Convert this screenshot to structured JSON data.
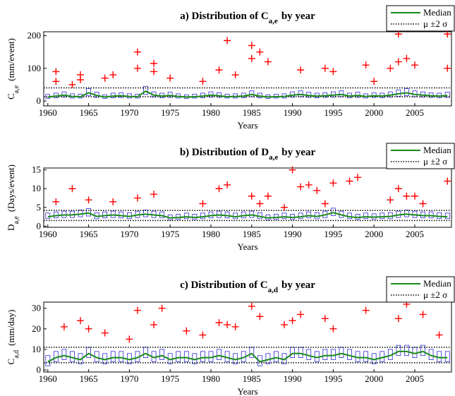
{
  "chart_data": [
    {
      "type": "box",
      "title_prefix": "a) Distribution of C",
      "title_sub": "a,e",
      "title_suffix": "by year",
      "ylabel_main": "C",
      "ylabel_sub": "a,e",
      "ylabel_unit": "(mm/event)",
      "xlabel": "Years",
      "median_name": "Median",
      "band_name": "μ ±2 σ",
      "median_color": "#1a8a1a",
      "box_color": "#2b2bd0",
      "outlier_color": "#ff0000",
      "xlim": [
        1959.5,
        2009.5
      ],
      "xticks": [
        1960,
        1965,
        1970,
        1975,
        1980,
        1985,
        1990,
        1995,
        2000,
        2005
      ],
      "ylim": [
        -15,
        212
      ],
      "yticks": [
        0,
        100,
        200
      ],
      "x": [
        1960,
        1961,
        1962,
        1963,
        1964,
        1965,
        1966,
        1967,
        1968,
        1969,
        1970,
        1971,
        1972,
        1973,
        1974,
        1975,
        1976,
        1977,
        1978,
        1979,
        1980,
        1981,
        1982,
        1983,
        1984,
        1985,
        1986,
        1987,
        1988,
        1989,
        1990,
        1991,
        1992,
        1993,
        1994,
        1995,
        1996,
        1997,
        1998,
        1999,
        2000,
        2001,
        2002,
        2003,
        2004,
        2005,
        2006,
        2007,
        2008,
        2009
      ],
      "median": [
        12,
        15,
        18,
        14,
        13,
        25,
        17,
        12,
        15,
        16,
        14,
        13,
        30,
        18,
        15,
        17,
        14,
        12,
        13,
        15,
        18,
        16,
        13,
        14,
        15,
        20,
        15,
        12,
        13,
        14,
        18,
        20,
        17,
        15,
        16,
        18,
        20,
        15,
        17,
        14,
        16,
        15,
        18,
        22,
        25,
        20,
        18,
        16,
        15,
        17
      ],
      "q1": [
        8,
        10,
        12,
        9,
        9,
        16,
        11,
        8,
        10,
        11,
        9,
        9,
        20,
        12,
        10,
        11,
        9,
        8,
        9,
        10,
        12,
        11,
        9,
        9,
        10,
        13,
        10,
        8,
        9,
        9,
        12,
        13,
        11,
        10,
        11,
        12,
        13,
        10,
        11,
        9,
        11,
        10,
        12,
        14,
        16,
        13,
        12,
        11,
        10,
        11
      ],
      "q3": [
        20,
        24,
        28,
        22,
        21,
        38,
        27,
        19,
        24,
        25,
        22,
        21,
        45,
        28,
        24,
        27,
        22,
        19,
        21,
        24,
        28,
        25,
        21,
        22,
        24,
        31,
        24,
        19,
        21,
        22,
        28,
        31,
        27,
        24,
        25,
        28,
        31,
        24,
        27,
        22,
        25,
        24,
        28,
        34,
        38,
        31,
        28,
        25,
        24,
        27
      ],
      "mu_2sigma": [
        40,
        13
      ],
      "outliers": {
        "x": [
          1961,
          1961,
          1963,
          1964,
          1964,
          1967,
          1968,
          1971,
          1971,
          1973,
          1973,
          1975,
          1979,
          1981,
          1982,
          1983,
          1985,
          1985,
          1986,
          1987,
          1991,
          1994,
          1995,
          1999,
          2000,
          2002,
          2003,
          2003,
          2004,
          2005,
          2009,
          2009
        ],
        "y": [
          60,
          90,
          50,
          65,
          80,
          70,
          80,
          150,
          100,
          90,
          115,
          70,
          60,
          95,
          185,
          80,
          170,
          130,
          150,
          120,
          95,
          100,
          90,
          110,
          60,
          100,
          205,
          120,
          130,
          110,
          205,
          100
        ]
      }
    },
    {
      "type": "box",
      "title_prefix": "b) Distribution of D",
      "title_sub": "a,e",
      "title_suffix": "by year",
      "ylabel_main": "D",
      "ylabel_sub": "a,e",
      "ylabel_unit": "(Days/event)",
      "xlabel": "Years",
      "median_name": "Median",
      "band_name": "μ ±2 σ",
      "median_color": "#1a8a1a",
      "box_color": "#2b2bd0",
      "outlier_color": "#ff0000",
      "xlim": [
        1959.5,
        2009.5
      ],
      "xticks": [
        1960,
        1965,
        1970,
        1975,
        1980,
        1985,
        1990,
        1995,
        2000,
        2005
      ],
      "ylim": [
        -0.3,
        15.5
      ],
      "yticks": [
        0,
        5,
        10,
        15
      ],
      "x": [
        1960,
        1961,
        1962,
        1963,
        1964,
        1965,
        1966,
        1967,
        1968,
        1969,
        1970,
        1971,
        1972,
        1973,
        1974,
        1975,
        1976,
        1977,
        1978,
        1979,
        1980,
        1981,
        1982,
        1983,
        1984,
        1985,
        1986,
        1987,
        1988,
        1989,
        1990,
        1991,
        1992,
        1993,
        1994,
        1995,
        1996,
        1997,
        1998,
        1999,
        2000,
        2001,
        2002,
        2003,
        2004,
        2005,
        2006,
        2007,
        2008,
        2009
      ],
      "median": [
        2.5,
        2.8,
        3.0,
        3.0,
        3.2,
        3.5,
        2.6,
        2.8,
        3.0,
        2.8,
        2.6,
        3.0,
        3.2,
        3.0,
        2.8,
        2.2,
        2.3,
        2.5,
        2.3,
        2.5,
        2.8,
        3.0,
        2.8,
        2.5,
        2.8,
        3.0,
        2.6,
        2.2,
        2.3,
        2.5,
        2.3,
        2.5,
        2.8,
        2.6,
        3.0,
        3.6,
        3.0,
        2.5,
        2.3,
        2.5,
        2.4,
        2.5,
        2.6,
        3.0,
        3.2,
        3.0,
        2.8,
        2.8,
        2.6,
        2.5
      ],
      "q1": [
        2.0,
        2.2,
        2.3,
        2.3,
        2.5,
        2.7,
        2.0,
        2.2,
        2.3,
        2.2,
        2.0,
        2.3,
        2.5,
        2.3,
        2.2,
        1.7,
        1.8,
        2.0,
        1.8,
        2.0,
        2.2,
        2.3,
        2.2,
        2.0,
        2.2,
        2.3,
        2.0,
        1.7,
        1.8,
        2.0,
        1.8,
        2.0,
        2.2,
        2.0,
        2.3,
        2.8,
        2.3,
        2.0,
        1.8,
        2.0,
        1.9,
        2.0,
        2.0,
        2.3,
        2.5,
        2.3,
        2.2,
        2.2,
        2.0,
        2.0
      ],
      "q3": [
        3.5,
        3.8,
        4.0,
        4.0,
        4.3,
        4.7,
        3.6,
        3.8,
        4.0,
        3.8,
        3.6,
        4.0,
        4.3,
        4.0,
        3.8,
        3.0,
        3.2,
        3.5,
        3.2,
        3.5,
        3.8,
        4.0,
        3.8,
        3.5,
        3.8,
        4.0,
        3.6,
        3.0,
        3.2,
        3.5,
        3.2,
        3.5,
        3.8,
        3.6,
        4.0,
        4.8,
        4.0,
        3.5,
        3.2,
        3.5,
        3.3,
        3.5,
        3.6,
        4.0,
        4.3,
        4.0,
        3.8,
        3.8,
        3.6,
        3.5
      ],
      "mu_2sigma": [
        4.2,
        1.5
      ],
      "outliers": {
        "x": [
          1963,
          1961,
          1965,
          1968,
          1971,
          1973,
          1979,
          1981,
          1982,
          1985,
          1986,
          1987,
          1989,
          1990,
          1991,
          1992,
          1993,
          1994,
          1995,
          1997,
          1998,
          2002,
          2003,
          2004,
          2005,
          2006,
          2009
        ],
        "y": [
          10,
          6.5,
          7,
          6.5,
          7.5,
          8.5,
          6,
          10,
          11,
          8,
          6,
          8,
          5,
          15,
          10.5,
          11,
          9.5,
          6,
          11.5,
          12,
          13,
          7,
          10,
          8,
          8,
          6,
          12
        ]
      }
    },
    {
      "type": "box",
      "title_prefix": "c) Distribution of C",
      "title_sub": "a,d",
      "title_suffix": "by year",
      "ylabel_main": "C",
      "ylabel_sub": "a,d",
      "ylabel_unit": "(mm/day)",
      "xlabel": "Years",
      "median_name": "Median",
      "band_name": "μ ±2 σ",
      "median_color": "#1a8a1a",
      "box_color": "#2b2bd0",
      "outlier_color": "#ff0000",
      "xlim": [
        1959.5,
        2009.5
      ],
      "xticks": [
        1960,
        1965,
        1970,
        1975,
        1980,
        1985,
        1990,
        1995,
        2000,
        2005
      ],
      "ylim": [
        -1,
        33
      ],
      "yticks": [
        0,
        10,
        20,
        30
      ],
      "x": [
        1960,
        1961,
        1962,
        1963,
        1964,
        1965,
        1966,
        1967,
        1968,
        1969,
        1970,
        1971,
        1972,
        1973,
        1974,
        1975,
        1976,
        1977,
        1978,
        1979,
        1980,
        1981,
        1982,
        1983,
        1984,
        1985,
        1986,
        1987,
        1988,
        1989,
        1990,
        1991,
        1992,
        1993,
        1994,
        1995,
        1996,
        1997,
        1998,
        1999,
        2000,
        2001,
        2002,
        2003,
        2004,
        2005,
        2006,
        2007,
        2008,
        2009
      ],
      "median": [
        4,
        6,
        7,
        6,
        5,
        8,
        6,
        5,
        6,
        6,
        5,
        6,
        8,
        6,
        7,
        5,
        6,
        6,
        5,
        6,
        6,
        7,
        6,
        5,
        6,
        8,
        4,
        5,
        6,
        5,
        8,
        8,
        7,
        6,
        7,
        7,
        8,
        7,
        6,
        6,
        5,
        6,
        7,
        9,
        9,
        8,
        9,
        7,
        6,
        6
      ],
      "q1": [
        2,
        4,
        5,
        4,
        3,
        6,
        4,
        3,
        4,
        4,
        3,
        4,
        6,
        4,
        5,
        3,
        4,
        4,
        3,
        4,
        4,
        5,
        4,
        3,
        4,
        6,
        2,
        3,
        4,
        3,
        6,
        6,
        5,
        4,
        5,
        5,
        6,
        5,
        4,
        4,
        3,
        4,
        5,
        7,
        7,
        6,
        7,
        5,
        4,
        4
      ],
      "q3": [
        7,
        9,
        10,
        9,
        8,
        11,
        9,
        8,
        9,
        9,
        8,
        9,
        11,
        9,
        10,
        8,
        9,
        9,
        8,
        9,
        9,
        10,
        9,
        8,
        9,
        11,
        7,
        8,
        9,
        8,
        11,
        11,
        10,
        9,
        10,
        10,
        11,
        10,
        9,
        9,
        8,
        9,
        10,
        12,
        12,
        11,
        12,
        10,
        9,
        9
      ],
      "mu_2sigma": [
        11,
        3.5
      ],
      "outliers": {
        "x": [
          1962,
          1964,
          1965,
          1967,
          1970,
          1971,
          1973,
          1974,
          1977,
          1979,
          1981,
          1982,
          1983,
          1985,
          1986,
          1989,
          1990,
          1991,
          1994,
          1995,
          1999,
          2003,
          2004,
          2006,
          2008
        ],
        "y": [
          21,
          24,
          20,
          18,
          15,
          29,
          22,
          30,
          19,
          17,
          23,
          22,
          21,
          31,
          26,
          22,
          24,
          27,
          25,
          20,
          29,
          25,
          32,
          27,
          17
        ]
      }
    }
  ]
}
